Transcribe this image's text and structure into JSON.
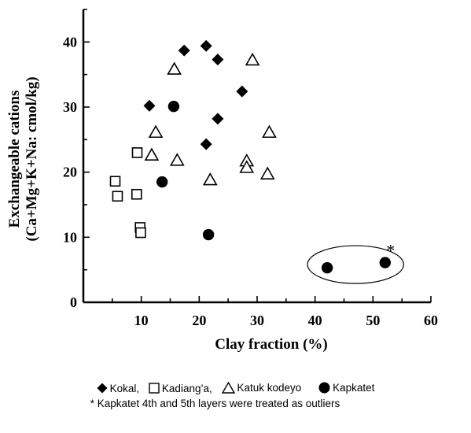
{
  "chart_data": {
    "type": "scatter",
    "xlabel": "Clay fraction (%)",
    "ylabel_line1": "Exchangeable cations",
    "ylabel_line2": "(Ca+Mg+K+Na: cmol/kg)",
    "xlim": [
      0,
      60
    ],
    "ylim": [
      0,
      45
    ],
    "xticks": [
      10,
      20,
      30,
      40,
      50,
      60
    ],
    "yticks": [
      0,
      10,
      20,
      30,
      40
    ],
    "grid": false,
    "legend_position": "bottom",
    "series": [
      {
        "name": "Kokal,",
        "marker": "diamond-filled",
        "points": [
          [
            11.4,
            30.2
          ],
          [
            17.4,
            38.7
          ],
          [
            21.2,
            39.4
          ],
          [
            23.2,
            37.3
          ],
          [
            27.4,
            32.4
          ],
          [
            21.2,
            24.3
          ],
          [
            23.2,
            28.2
          ]
        ]
      },
      {
        "name": "Kadiang’a,",
        "marker": "square-open",
        "points": [
          [
            5.5,
            18.6
          ],
          [
            5.9,
            16.3
          ],
          [
            9.3,
            23.0
          ],
          [
            9.2,
            16.6
          ],
          [
            9.8,
            11.5
          ],
          [
            9.9,
            10.7
          ]
        ]
      },
      {
        "name": "Katuk kodeyo",
        "marker": "triangle-open",
        "points": [
          [
            15.7,
            35.8
          ],
          [
            12.5,
            26.1
          ],
          [
            11.8,
            22.6
          ],
          [
            16.2,
            21.8
          ],
          [
            21.9,
            18.8
          ],
          [
            28.2,
            21.7
          ],
          [
            28.2,
            20.7
          ],
          [
            29.2,
            37.2
          ],
          [
            32.1,
            26.1
          ],
          [
            31.8,
            19.7
          ]
        ]
      },
      {
        "name": "Kapkatet",
        "marker": "circle-filled",
        "points": [
          [
            15.6,
            30.1
          ],
          [
            13.6,
            18.5
          ],
          [
            21.6,
            10.4
          ],
          [
            42.1,
            5.3
          ],
          [
            52.1,
            6.1
          ]
        ]
      }
    ],
    "annotations": {
      "outlier_star": "*",
      "outlier_ellipse_center": [
        47,
        5.8
      ],
      "outlier_ellipse_radii": [
        8.3,
        2.9
      ],
      "footnote": "* Kapkatet 4th and 5th layers were treated as outliers"
    }
  }
}
